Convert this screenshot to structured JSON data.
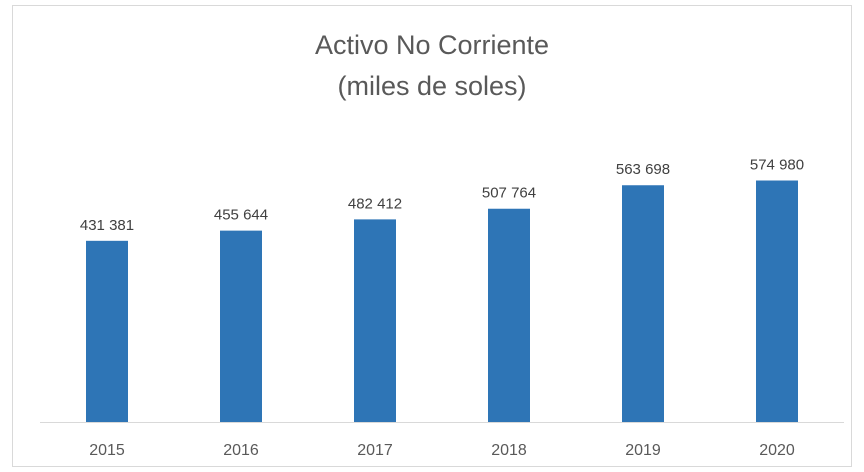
{
  "chart_data": {
    "type": "bar",
    "title": "Activo No Corriente",
    "subtitle": "(miles de soles)",
    "categories": [
      "2015",
      "2016",
      "2017",
      "2018",
      "2019",
      "2020"
    ],
    "values": [
      431381,
      455644,
      482412,
      507764,
      563698,
      574980
    ],
    "value_labels": [
      "431 381",
      "455 644",
      "482 412",
      "507 764",
      "563 698",
      "574 980"
    ],
    "color": "#2e75b6",
    "ylim": [
      0,
      700000
    ],
    "grid": false
  }
}
